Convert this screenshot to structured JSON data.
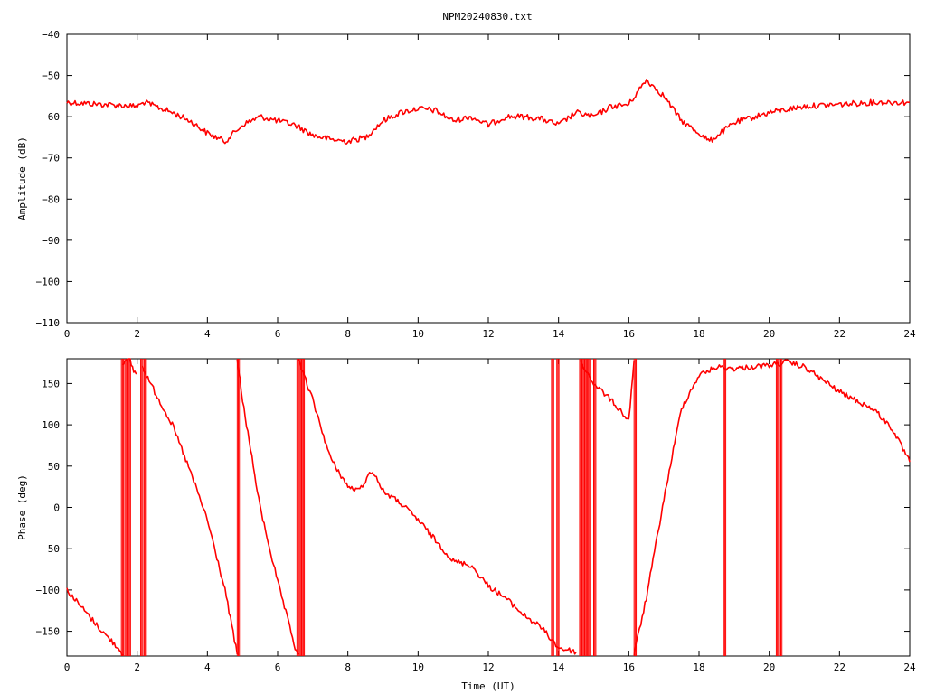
{
  "title": "NPM20240830.txt",
  "chart_data": [
    {
      "type": "line",
      "title": "NPM20240830.txt",
      "xlabel": "",
      "ylabel": "Amplitude (dB)",
      "xlim": [
        0,
        24
      ],
      "ylim": [
        -110,
        -40
      ],
      "x_ticks": [
        0,
        2,
        4,
        6,
        8,
        10,
        12,
        14,
        16,
        18,
        20,
        22,
        24
      ],
      "y_ticks": [
        -110,
        -100,
        -90,
        -80,
        -70,
        -60,
        -50,
        -40
      ],
      "color": "#ff0000",
      "series": [
        {
          "x": [
            0,
            1,
            2,
            2.2,
            3,
            3.5,
            4,
            4.5,
            5,
            5.5,
            6,
            6.5,
            7,
            7.5,
            8,
            8.5,
            9,
            9.5,
            10,
            10.5,
            11,
            11.5,
            12,
            12.5,
            13,
            13.5,
            14,
            14.5,
            15,
            15.5,
            16,
            16.5,
            17,
            17.5,
            18,
            18.3,
            19,
            20,
            21,
            22,
            23,
            24
          ],
          "y": [
            -56.5,
            -57,
            -57.5,
            -56.5,
            -59,
            -61,
            -64,
            -66,
            -62,
            -60,
            -61,
            -62,
            -64.5,
            -65.5,
            -66,
            -65,
            -61,
            -59,
            -58,
            -58.5,
            -61,
            -60,
            -62,
            -60,
            -60,
            -60.5,
            -62,
            -59,
            -60,
            -57.5,
            -57,
            -51,
            -55,
            -61,
            -64,
            -66,
            -61.5,
            -59,
            -57.5,
            -57,
            -56.5,
            -56.5
          ]
        }
      ]
    },
    {
      "type": "line",
      "title": "",
      "xlabel": "Time (UT)",
      "ylabel": "Phase (deg)",
      "xlim": [
        0,
        24
      ],
      "ylim": [
        -180,
        180
      ],
      "x_ticks": [
        0,
        2,
        4,
        6,
        8,
        10,
        12,
        14,
        16,
        18,
        20,
        22,
        24
      ],
      "y_ticks": [
        -150,
        -100,
        -50,
        0,
        50,
        100,
        150
      ],
      "color": "#ff0000",
      "segments": [
        {
          "x": [
            0,
            0.5,
            1,
            1.5,
            1.6
          ],
          "y": [
            -100,
            -125,
            -150,
            -172,
            -178
          ]
        },
        {
          "x": [
            1.6,
            1.8,
            1.9,
            2.0
          ],
          "y": [
            175,
            178,
            165,
            162
          ]
        },
        {
          "x": [
            2.15,
            2.5,
            3,
            3.5,
            4,
            4.5,
            4.85
          ],
          "y": [
            170,
            140,
            100,
            45,
            -15,
            -100,
            -178
          ]
        },
        {
          "x": [
            4.85,
            5,
            5.5,
            6,
            6.5,
            6.6
          ],
          "y": [
            178,
            130,
            0,
            -90,
            -170,
            -178
          ]
        },
        {
          "x": [
            6.6,
            7,
            7.5,
            8,
            8.3,
            8.7,
            9,
            9.5,
            10,
            10.5,
            11,
            11.5,
            12,
            12.5,
            13,
            13.5,
            14,
            14.5
          ],
          "y": [
            178,
            130,
            60,
            25,
            20,
            45,
            20,
            5,
            -15,
            -40,
            -65,
            -70,
            -95,
            -110,
            -130,
            -145,
            -170,
            -175
          ]
        },
        {
          "x": [
            14.6,
            15,
            15.5,
            16,
            16.15
          ],
          "y": [
            178,
            150,
            130,
            105,
            178
          ]
        },
        {
          "x": [
            16.15,
            16.5,
            17,
            17.5,
            18,
            18.5,
            19,
            20,
            20.5,
            21,
            22,
            23,
            23.5,
            24
          ],
          "y": [
            -178,
            -110,
            10,
            120,
            160,
            170,
            168,
            172,
            176,
            170,
            140,
            118,
            95,
            55
          ]
        }
      ],
      "wrap_regions_x": [
        1.55,
        1.65,
        1.75,
        2.1,
        2.2,
        4.85,
        6.55,
        6.62,
        6.7,
        13.8,
        13.95,
        14.6,
        14.68,
        14.76,
        14.85,
        15,
        16.15,
        18.7,
        20.2,
        20.3
      ]
    }
  ]
}
